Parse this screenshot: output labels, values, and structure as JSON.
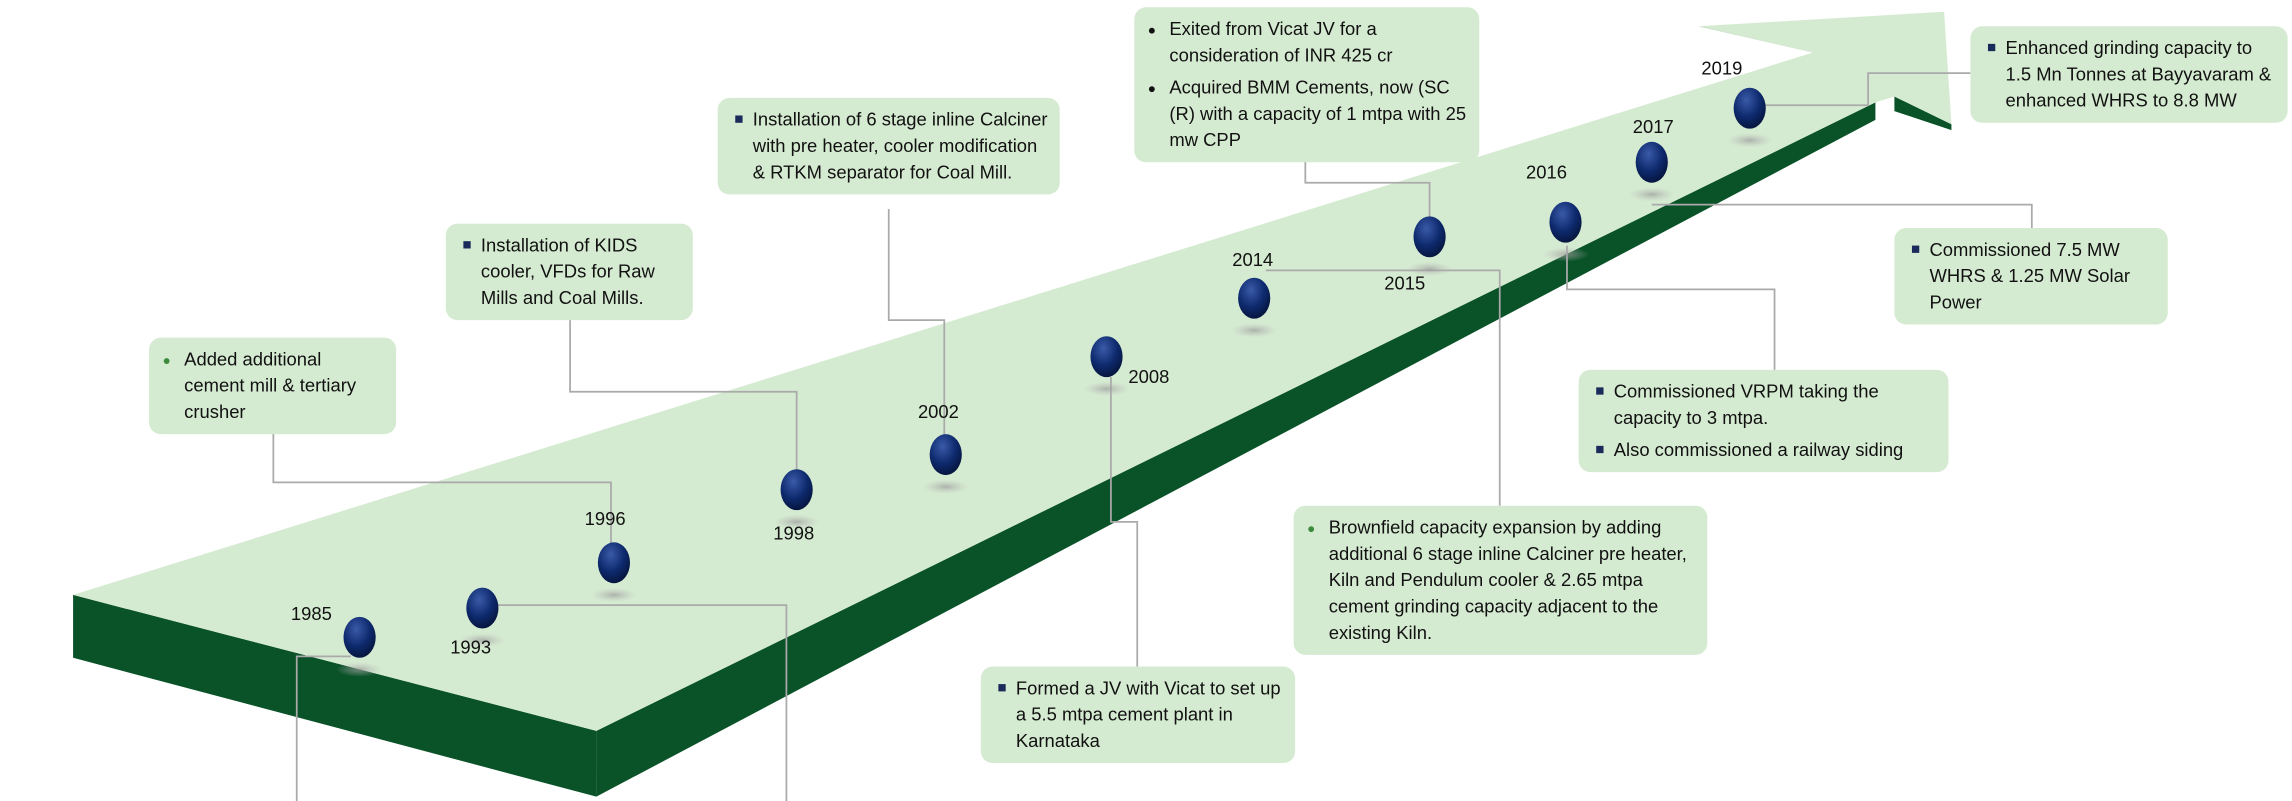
{
  "milestones": [
    {
      "year": "1985"
    },
    {
      "year": "1993"
    },
    {
      "year": "1996"
    },
    {
      "year": "1998"
    },
    {
      "year": "2002"
    },
    {
      "year": "2008"
    },
    {
      "year": "2014"
    },
    {
      "year": "2015"
    },
    {
      "year": "2016"
    },
    {
      "year": "2017"
    },
    {
      "year": "2019"
    }
  ],
  "boxes": [
    {
      "bullets": [
        "Added additional cement mill & tertiary crusher"
      ]
    },
    {
      "bullets": [
        "Installation of KIDS cooler, VFDs for Raw Mills and Coal Mills."
      ]
    },
    {
      "bullets": [
        "Installation of 6 stage inline Calciner with pre heater, cooler modification & RTKM separator for Coal Mill."
      ]
    },
    {
      "bullets": [
        "Exited from  Vicat JV for a consideration of INR 425 cr",
        "Acquired BMM Cements, now (SC (R) with a capacity of 1 mtpa with 25 mw CPP"
      ]
    },
    {
      "bullets": [
        "Enhanced grinding capacity to 1.5 Mn Tonnes at Bayyavaram & enhanced WHRS to 8.8 MW"
      ]
    },
    {
      "bullets": [
        "Commissioned 7.5 MW WHRS & 1.25 MW Solar Power"
      ]
    },
    {
      "bullets": [
        "Commissioned VRPM taking the capacity to 3 mtpa.",
        "Also commissioned a railway siding"
      ]
    },
    {
      "bullets": [
        "Brownfield capacity expansion by adding additional 6 stage inline Calciner pre heater, Kiln and Pendulum cooler & 2.65 mtpa cement grinding capacity adjacent to the existing Kiln."
      ]
    },
    {
      "bullets": [
        "Formed a JV with Vicat to set up a 5.5 mtpa cement plant in Karnataka"
      ]
    }
  ]
}
